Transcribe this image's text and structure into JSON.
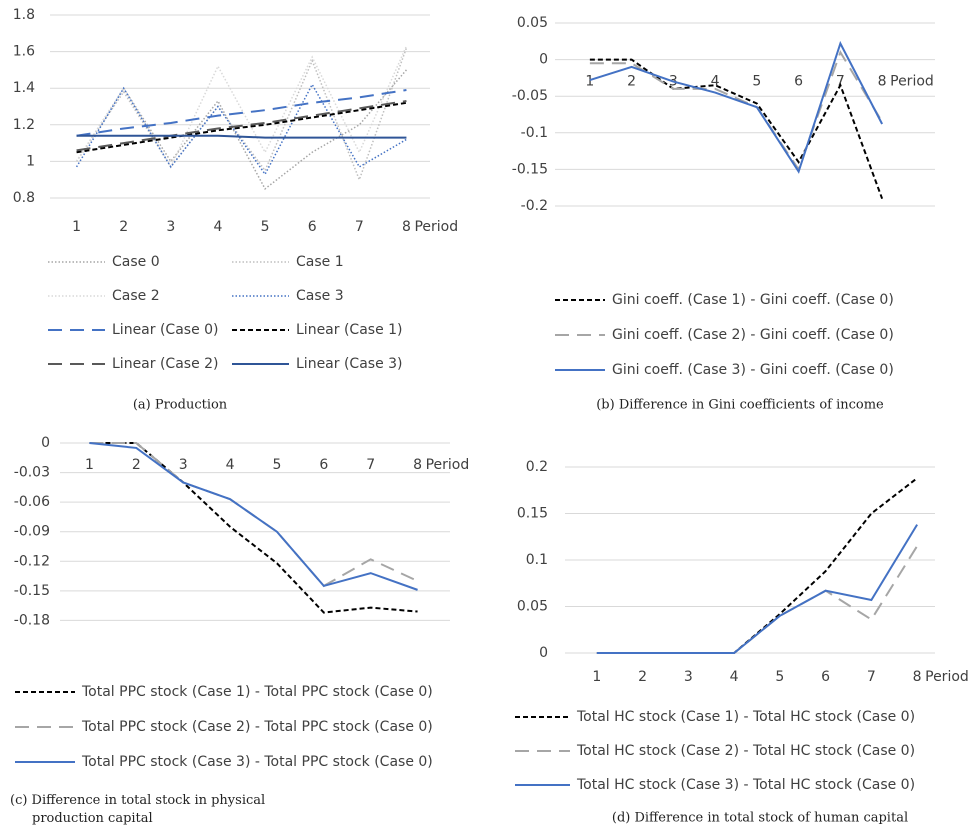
{
  "chart_data": [
    {
      "type": "line",
      "caption": "(a) Production",
      "x_label": "Period",
      "categories": [
        "1",
        "2",
        "3",
        "4",
        "5",
        "6",
        "7",
        "8"
      ],
      "ylim": [
        0.8,
        1.8
      ],
      "yticks": [
        0.8,
        1,
        1.2,
        1.4,
        1.6,
        1.8
      ],
      "grid": true,
      "series": [
        {
          "name": "Case 0",
          "color": "#a6a6a6",
          "dash": "dotted",
          "values": [
            1.0,
            1.4,
            1.0,
            1.33,
            0.85,
            1.05,
            1.2,
            1.5
          ]
        },
        {
          "name": "Case 1",
          "color": "#bfbfbf",
          "dash": "dotted",
          "values": [
            1.0,
            1.38,
            0.97,
            1.3,
            0.95,
            1.55,
            0.9,
            1.62
          ]
        },
        {
          "name": "Case 2",
          "color": "#d9d9d9",
          "dash": "dotted",
          "values": [
            1.0,
            1.4,
            0.97,
            1.52,
            1.05,
            1.57,
            1.05,
            1.63
          ]
        },
        {
          "name": "Case 3",
          "color": "#4472c4",
          "dash": "dotted",
          "values": [
            0.97,
            1.4,
            0.97,
            1.3,
            0.93,
            1.42,
            0.97,
            1.12
          ]
        },
        {
          "name": "Linear (Case 0)",
          "color": "#4472c4",
          "dash": "long-dashed",
          "values": [
            1.14,
            1.18,
            1.21,
            1.25,
            1.28,
            1.32,
            1.35,
            1.39
          ]
        },
        {
          "name": "Linear (Case 1)",
          "color": "#000000",
          "dash": "dashed",
          "values": [
            1.05,
            1.09,
            1.13,
            1.17,
            1.2,
            1.24,
            1.28,
            1.32
          ]
        },
        {
          "name": "Linear (Case 2)",
          "color": "#595959",
          "dash": "long-dashed",
          "values": [
            1.06,
            1.1,
            1.14,
            1.18,
            1.21,
            1.25,
            1.29,
            1.33
          ]
        },
        {
          "name": "Linear (Case 3)",
          "color": "#2f5597",
          "dash": "solid",
          "values": [
            1.14,
            1.14,
            1.14,
            1.14,
            1.13,
            1.13,
            1.13,
            1.13
          ]
        }
      ]
    },
    {
      "type": "line",
      "caption": "(b) Difference in Gini coefficients of income",
      "x_label": "Period",
      "categories": [
        "1",
        "2",
        "3",
        "4",
        "5",
        "6",
        "7",
        "8"
      ],
      "ylim": [
        -0.2,
        0.05
      ],
      "yticks": [
        -0.2,
        -0.15,
        -0.1,
        -0.05,
        0,
        0.05
      ],
      "grid": true,
      "series": [
        {
          "name": "Gini coeff. (Case 1) - Gini coeff. (Case 0)",
          "color": "#000000",
          "dash": "dashed",
          "values": [
            0,
            0,
            -0.04,
            -0.035,
            -0.06,
            -0.14,
            -0.035,
            -0.19
          ]
        },
        {
          "name": "Gini coeff. (Case 2) - Gini coeff. (Case 0)",
          "color": "#a6a6a6",
          "dash": "long-dashed",
          "values": [
            -0.005,
            -0.005,
            -0.04,
            -0.04,
            -0.065,
            -0.15,
            0.01,
            -0.085
          ]
        },
        {
          "name": "Gini coeff. (Case 3) - Gini coeff. (Case 0)",
          "color": "#4472c4",
          "dash": "solid",
          "values": [
            -0.028,
            -0.01,
            -0.03,
            -0.045,
            -0.065,
            -0.153,
            0.022,
            -0.088
          ]
        }
      ]
    },
    {
      "type": "line",
      "caption": "(c) Difference in total stock in physical production capital",
      "x_label": "Period",
      "categories": [
        "1",
        "2",
        "3",
        "4",
        "5",
        "6",
        "7",
        "8"
      ],
      "ylim": [
        -0.21,
        0
      ],
      "yticks": [
        -0.18,
        -0.15,
        -0.12,
        -0.09,
        -0.06,
        -0.03,
        0
      ],
      "grid": true,
      "series": [
        {
          "name": "Total PPC stock (Case 1) - Total PPC stock (Case 0)",
          "color": "#000000",
          "dash": "dashed",
          "values": [
            0,
            0,
            -0.04,
            -0.085,
            -0.122,
            -0.172,
            -0.167,
            -0.171
          ]
        },
        {
          "name": "Total PPC stock (Case 2) - Total PPC stock (Case 0)",
          "color": "#a6a6a6",
          "dash": "long-dashed",
          "values": [
            0,
            0,
            -0.04,
            -0.057,
            -0.09,
            -0.145,
            -0.118,
            -0.14
          ]
        },
        {
          "name": "Total PPC stock (Case 3) - Total PPC stock (Case 0)",
          "color": "#4472c4",
          "dash": "solid",
          "values": [
            0,
            -0.005,
            -0.04,
            -0.057,
            -0.09,
            -0.145,
            -0.132,
            -0.149
          ]
        }
      ]
    },
    {
      "type": "line",
      "caption": "(d) Difference in total stock of human capital",
      "x_label": "Period",
      "categories": [
        "1",
        "2",
        "3",
        "4",
        "5",
        "6",
        "7",
        "8"
      ],
      "ylim": [
        0,
        0.2
      ],
      "yticks": [
        0,
        0.05,
        0.1,
        0.15,
        0.2
      ],
      "grid": true,
      "series": [
        {
          "name": "Total HC stock (Case 1) - Total HC stock (Case 0)",
          "color": "#000000",
          "dash": "dashed",
          "values": [
            0,
            0,
            0,
            0,
            0.042,
            0.088,
            0.15,
            0.188
          ]
        },
        {
          "name": "Total HC stock (Case 2) - Total HC stock (Case 0)",
          "color": "#a6a6a6",
          "dash": "long-dashed",
          "values": [
            0,
            0,
            0,
            0,
            0.04,
            0.067,
            0.036,
            0.115
          ]
        },
        {
          "name": "Total HC stock (Case 3) - Total HC stock (Case 0)",
          "color": "#4472c4",
          "dash": "solid",
          "values": [
            0,
            0,
            0,
            0,
            0.04,
            0.067,
            0.057,
            0.138
          ]
        }
      ]
    }
  ]
}
